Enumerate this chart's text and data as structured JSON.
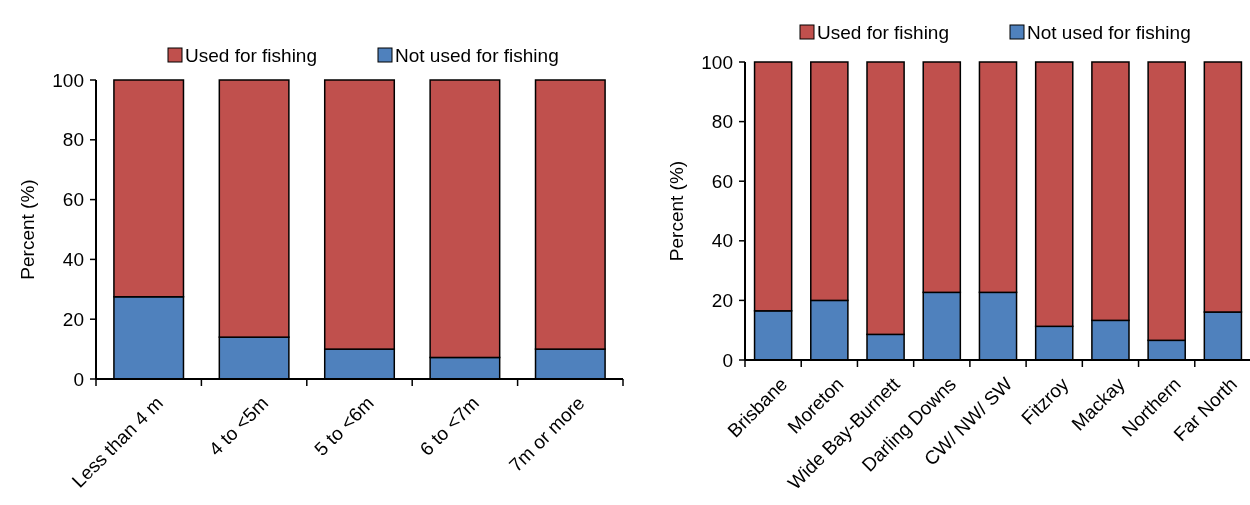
{
  "chart_data": [
    {
      "type": "bar",
      "stacked": true,
      "ylabel": "Percent (%)",
      "categories": [
        "Less than 4 m",
        "4 to <5m",
        "5 to <6m",
        "6 to <7m",
        "7m or more"
      ],
      "series": [
        {
          "name": "Not used for fishing",
          "color": "#4f81bd",
          "values": [
            27.5,
            14,
            10,
            7.2,
            10
          ]
        },
        {
          "name": "Used for fishing",
          "color": "#c0504d",
          "values": [
            72.5,
            86,
            90,
            92.8,
            90
          ]
        }
      ],
      "ylim": [
        0,
        100
      ],
      "yticks": [
        0,
        20,
        40,
        60,
        80,
        100
      ],
      "legend": "top",
      "grid": false
    },
    {
      "type": "bar",
      "stacked": true,
      "ylabel": "Percent (%)",
      "categories": [
        "Brisbane",
        "Moreton",
        "Wide Bay-Burnett",
        "Darling Downs",
        "CW/ NW/ SW",
        "Fitzroy",
        "Mackay",
        "Northern",
        "Far North"
      ],
      "series": [
        {
          "name": "Not used for fishing",
          "color": "#4f81bd",
          "values": [
            16.5,
            20,
            8.6,
            22.7,
            22.7,
            11.3,
            13.3,
            6.6,
            16.1
          ]
        },
        {
          "name": "Used for fishing",
          "color": "#c0504d",
          "values": [
            83.5,
            80,
            91.4,
            77.3,
            77.3,
            88.7,
            86.7,
            93.4,
            83.9
          ]
        }
      ],
      "ylim": [
        0,
        100
      ],
      "yticks": [
        0,
        20,
        40,
        60,
        80,
        100
      ],
      "legend": "top",
      "grid": false
    }
  ]
}
